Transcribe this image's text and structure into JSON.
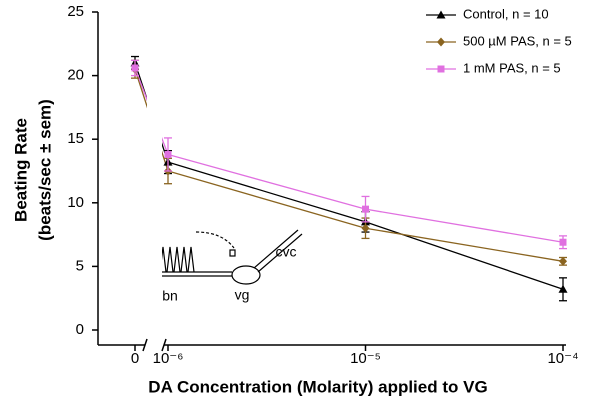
{
  "chart_data": {
    "type": "line",
    "y_label_lines": [
      "Beating Rate",
      "(beats/sec ± sem)"
    ],
    "x_label": "DA Concentration (Molarity) applied to VG",
    "x": [
      0,
      1e-06,
      1e-05,
      0.0001
    ],
    "xscale": "log",
    "xlim": [
      1e-06,
      0.0001
    ],
    "xticks": [
      0,
      {
        "value": 1e-06,
        "label": "10⁻⁶"
      },
      {
        "value": 1e-05,
        "label": "10⁻⁵"
      },
      {
        "value": 0.0001,
        "label": "10⁻⁴"
      }
    ],
    "ylim": [
      0,
      25
    ],
    "yticks": [
      0,
      5,
      10,
      15,
      20,
      25
    ],
    "legend": "top-right",
    "series": [
      {
        "name": "Control, n = 10",
        "color": "#000000",
        "marker": "triangle",
        "values": [
          21.0,
          13.2,
          8.5,
          3.2
        ],
        "errors": [
          0.5,
          0.9,
          0.8,
          0.9
        ]
      },
      {
        "name": "500 µM PAS, n = 5",
        "color": "#8a6420",
        "marker": "diamond",
        "values": [
          20.5,
          12.5,
          8.0,
          5.4
        ],
        "errors": [
          0.7,
          1.0,
          0.8,
          0.3
        ]
      },
      {
        "name": "1 mM PAS, n = 5",
        "color": "#e070e0",
        "marker": "square",
        "values": [
          20.6,
          13.8,
          9.5,
          6.9
        ],
        "errors": [
          0.6,
          1.3,
          1.0,
          0.5
        ]
      }
    ],
    "annotations": [
      "bn",
      "vg",
      "cvc"
    ]
  }
}
